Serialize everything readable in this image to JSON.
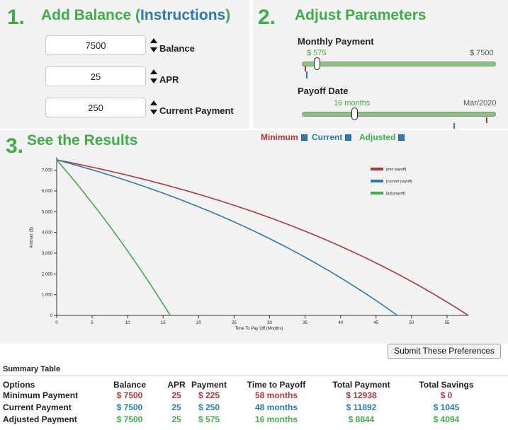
{
  "section1": {
    "number": "1.",
    "title": "Add Balance (",
    "instructions_link": "Instructions",
    "title_close": ")",
    "balance": {
      "value": "7500",
      "label": "Balance"
    },
    "apr": {
      "value": "25",
      "label": "APR"
    },
    "current_payment": {
      "value": "250",
      "label": "Current Payment"
    }
  },
  "section2": {
    "number": "2.",
    "title": "Adjust Parameters",
    "monthly_payment": {
      "label": "Monthly Payment",
      "current": "$ 575",
      "max": "$ 7500",
      "fraction": 0.077
    },
    "payoff_date": {
      "label": "Payoff Date",
      "current": "16 months",
      "max": "Mar/2020",
      "fraction": 0.27
    }
  },
  "section3": {
    "number": "3.",
    "title": "See the Results",
    "legend": {
      "minimum": "Minimum",
      "current": "Current",
      "adjusted": "Adjusted"
    }
  },
  "colors": {
    "minimum": "#b4343a",
    "current": "#2a7ab8",
    "adjusted": "#3fae49",
    "slider": "#8fbe86"
  },
  "chart_data": {
    "type": "line",
    "xlabel": "Time To Pay Off (Months)",
    "ylabel": "Amount ($)",
    "xlim": [
      0,
      58
    ],
    "ylim": [
      0,
      7500
    ],
    "x_ticks": [
      0,
      5,
      10,
      15,
      20,
      25,
      30,
      35,
      40,
      45,
      50,
      55
    ],
    "y_ticks": [
      0,
      1000,
      2000,
      3000,
      4000,
      5000,
      6000,
      7000
    ],
    "y_tick_labels": [
      "0",
      "1,000",
      "2,000",
      "3,000",
      "4,000",
      "5,000",
      "6,000",
      "7,000"
    ],
    "legend_position": "top-right",
    "series": [
      {
        "name": "[min payoff]",
        "color": "#b4343a",
        "payoff_months": 58
      },
      {
        "name": "[current payoff]",
        "color": "#2a7ab8",
        "payoff_months": 48
      },
      {
        "name": "[adj payoff]",
        "color": "#3fae49",
        "payoff_months": 16
      }
    ]
  },
  "submit_label": "Submit These Preferences",
  "summary": {
    "title": "Summary Table",
    "headers": [
      "Options",
      "Balance",
      "APR",
      "Payment",
      "Time to Payoff",
      "Total Payment",
      "Total Savings"
    ],
    "rows": [
      {
        "option": "Minimum Payment",
        "balance": "$ 7500",
        "apr": "25",
        "payment": "$ 225",
        "time": "58 months",
        "total": "$ 12938",
        "savings": "$ 0"
      },
      {
        "option": "Current Payment",
        "balance": "$ 7500",
        "apr": "25",
        "payment": "$ 250",
        "time": "48 months",
        "total": "$ 11892",
        "savings": "$ 1045"
      },
      {
        "option": "Adjusted Payment",
        "balance": "$ 7500",
        "apr": "25",
        "payment": "$ 575",
        "time": "16 months",
        "total": "$ 8844",
        "savings": "$ 4094"
      }
    ]
  }
}
